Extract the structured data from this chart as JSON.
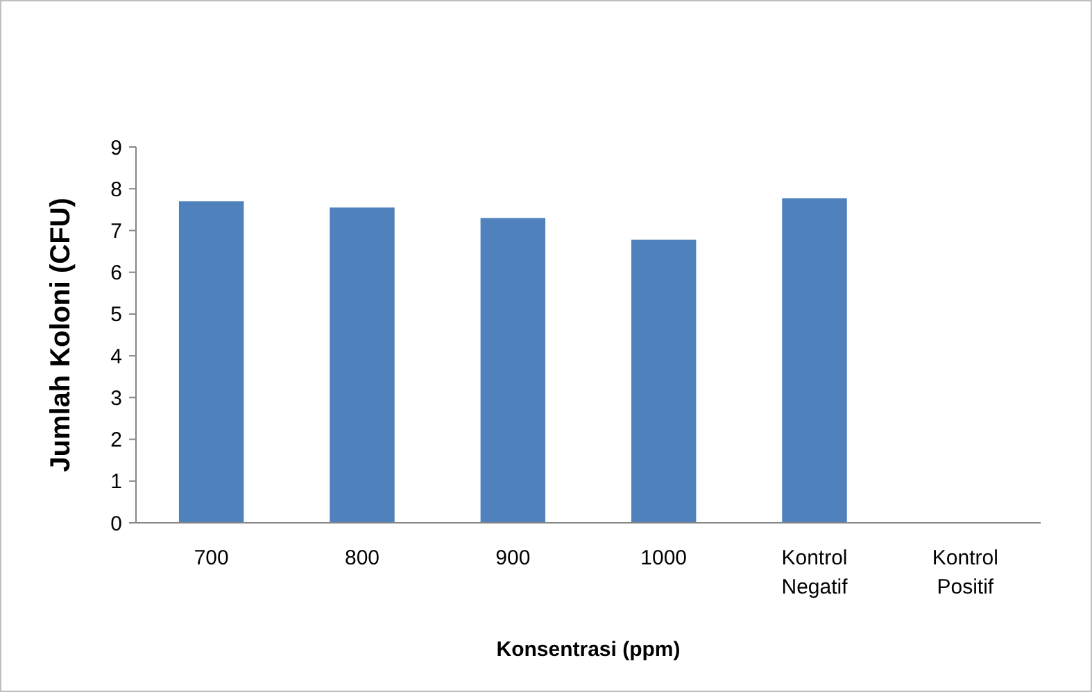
{
  "chart_data": {
    "type": "bar",
    "xlabel": "Konsentrasi (ppm)",
    "ylabel": "Jumlah Koloni (CFU)",
    "categories": [
      "700",
      "800",
      "900",
      "1000",
      "Kontrol Negatif",
      "Kontrol Positif"
    ],
    "values": [
      7.7,
      7.55,
      7.3,
      6.78,
      7.77,
      0
    ],
    "color": "#4f81bd",
    "ylim": [
      0,
      9
    ],
    "yticks": [
      0,
      1,
      2,
      3,
      4,
      5,
      6,
      7,
      8,
      9
    ]
  }
}
